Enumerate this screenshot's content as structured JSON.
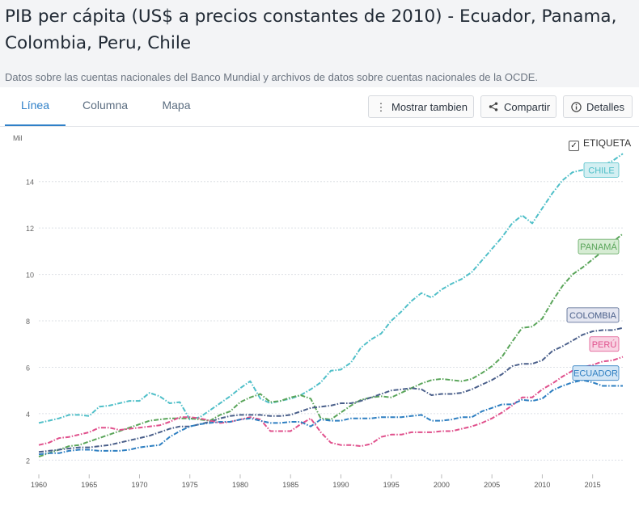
{
  "page": {
    "title": "PIB per cápita (US$ a precios constantes de 2010) - Ecuador, Panama, Colombia, Peru, Chile",
    "subtitle": "Datos sobre las cuentas nacionales del Banco Mundial y archivos de datos sobre cuentas nacionales de la OCDE."
  },
  "tabs": [
    {
      "label": "Línea",
      "active": true
    },
    {
      "label": "Columna",
      "active": false
    },
    {
      "label": "Mapa",
      "active": false
    }
  ],
  "toolbar": {
    "more_label": "Mostrar tambien",
    "share_label": "Compartir",
    "details_label": "Detalles"
  },
  "icons": {
    "more": "vertical-dots-icon",
    "share": "share-icon",
    "details": "info-icon",
    "checkbox": "checkmark-icon"
  },
  "chart_data": {
    "type": "line",
    "unit_label": "Mil",
    "legend_checkbox_label": "ETIQUETA",
    "legend_checked": true,
    "x_ticks": [
      1960,
      1965,
      1970,
      1975,
      1980,
      1985,
      1990,
      1995,
      2000,
      2005,
      2010,
      2015
    ],
    "y_ticks": [
      2,
      4,
      6,
      8,
      10,
      12,
      14
    ],
    "xlim": [
      1960,
      2018
    ],
    "ylim": [
      1.7,
      15.8
    ],
    "grid": true,
    "x": [
      1960,
      1961,
      1962,
      1963,
      1964,
      1965,
      1966,
      1967,
      1968,
      1969,
      1970,
      1971,
      1972,
      1973,
      1974,
      1975,
      1976,
      1977,
      1978,
      1979,
      1980,
      1981,
      1982,
      1983,
      1984,
      1985,
      1986,
      1987,
      1988,
      1989,
      1990,
      1991,
      1992,
      1993,
      1994,
      1995,
      1996,
      1997,
      1998,
      1999,
      2000,
      2001,
      2002,
      2003,
      2004,
      2005,
      2006,
      2007,
      2008,
      2009,
      2010,
      2011,
      2012,
      2013,
      2014,
      2015,
      2016,
      2017,
      2018
    ],
    "series": [
      {
        "name": "CHILE",
        "color": "#4fbfc8",
        "label_bg": "#d3eff2",
        "values": [
          3.6,
          3.7,
          3.8,
          3.95,
          3.95,
          3.9,
          4.3,
          4.35,
          4.45,
          4.55,
          4.55,
          4.9,
          4.75,
          4.45,
          4.5,
          3.75,
          3.85,
          4.15,
          4.45,
          4.75,
          5.1,
          5.4,
          4.65,
          4.45,
          4.55,
          4.65,
          4.8,
          5.05,
          5.35,
          5.85,
          5.9,
          6.2,
          6.85,
          7.2,
          7.45,
          8.0,
          8.4,
          8.85,
          9.2,
          9.0,
          9.35,
          9.6,
          9.8,
          10.1,
          10.6,
          11.1,
          11.6,
          12.2,
          12.55,
          12.2,
          12.85,
          13.5,
          14.05,
          14.4,
          14.5,
          14.6,
          14.7,
          14.9,
          15.2
        ]
      },
      {
        "name": "PANAMÁ",
        "color": "#5aa55a",
        "label_bg": "#d6ecd3",
        "values": [
          2.15,
          2.3,
          2.45,
          2.6,
          2.65,
          2.8,
          2.95,
          3.1,
          3.25,
          3.4,
          3.55,
          3.7,
          3.75,
          3.8,
          3.8,
          3.8,
          3.75,
          3.7,
          3.95,
          4.1,
          4.5,
          4.7,
          4.85,
          4.5,
          4.55,
          4.7,
          4.8,
          4.65,
          3.8,
          3.75,
          4.05,
          4.35,
          4.6,
          4.7,
          4.75,
          4.7,
          4.9,
          5.1,
          5.3,
          5.45,
          5.5,
          5.45,
          5.4,
          5.5,
          5.75,
          6.05,
          6.45,
          7.1,
          7.7,
          7.75,
          8.1,
          8.85,
          9.5,
          10.0,
          10.3,
          10.65,
          11.0,
          11.4,
          11.75
        ]
      },
      {
        "name": "COLOMBIA",
        "color": "#4a5f8a",
        "label_bg": "#e4e6f1",
        "values": [
          2.35,
          2.4,
          2.45,
          2.5,
          2.55,
          2.55,
          2.6,
          2.65,
          2.75,
          2.85,
          2.95,
          3.05,
          3.2,
          3.35,
          3.45,
          3.45,
          3.55,
          3.65,
          3.8,
          3.9,
          3.95,
          3.95,
          3.95,
          3.9,
          3.9,
          3.95,
          4.1,
          4.25,
          4.3,
          4.35,
          4.45,
          4.45,
          4.55,
          4.7,
          4.85,
          5.0,
          5.05,
          5.1,
          5.05,
          4.8,
          4.85,
          4.85,
          4.9,
          5.05,
          5.25,
          5.45,
          5.7,
          6.05,
          6.15,
          6.15,
          6.3,
          6.7,
          6.9,
          7.15,
          7.4,
          7.55,
          7.6,
          7.6,
          7.7
        ]
      },
      {
        "name": "PERÚ",
        "color": "#e0508c",
        "label_bg": "#f8d4e3",
        "values": [
          2.65,
          2.75,
          2.95,
          3.0,
          3.1,
          3.2,
          3.4,
          3.4,
          3.3,
          3.35,
          3.4,
          3.45,
          3.5,
          3.65,
          3.85,
          3.85,
          3.8,
          3.7,
          3.6,
          3.65,
          3.75,
          3.85,
          3.75,
          3.25,
          3.25,
          3.25,
          3.55,
          3.8,
          3.2,
          2.75,
          2.65,
          2.65,
          2.6,
          2.7,
          3.0,
          3.1,
          3.1,
          3.2,
          3.2,
          3.2,
          3.25,
          3.25,
          3.35,
          3.45,
          3.6,
          3.8,
          4.05,
          4.35,
          4.7,
          4.7,
          5.05,
          5.3,
          5.6,
          5.85,
          6.0,
          6.1,
          6.25,
          6.3,
          6.45
        ]
      },
      {
        "name": "ECUADOR",
        "color": "#2e7fc1",
        "label_bg": "#d2e6f6",
        "values": [
          2.25,
          2.3,
          2.3,
          2.4,
          2.45,
          2.45,
          2.4,
          2.4,
          2.4,
          2.45,
          2.55,
          2.6,
          2.65,
          3.0,
          3.25,
          3.45,
          3.55,
          3.6,
          3.65,
          3.65,
          3.75,
          3.8,
          3.7,
          3.6,
          3.6,
          3.65,
          3.65,
          3.45,
          3.75,
          3.7,
          3.7,
          3.8,
          3.8,
          3.8,
          3.85,
          3.85,
          3.85,
          3.9,
          3.95,
          3.7,
          3.7,
          3.75,
          3.85,
          3.85,
          4.1,
          4.25,
          4.4,
          4.4,
          4.6,
          4.55,
          4.65,
          5.0,
          5.2,
          5.35,
          5.45,
          5.35,
          5.2,
          5.2,
          5.2
        ]
      }
    ]
  }
}
